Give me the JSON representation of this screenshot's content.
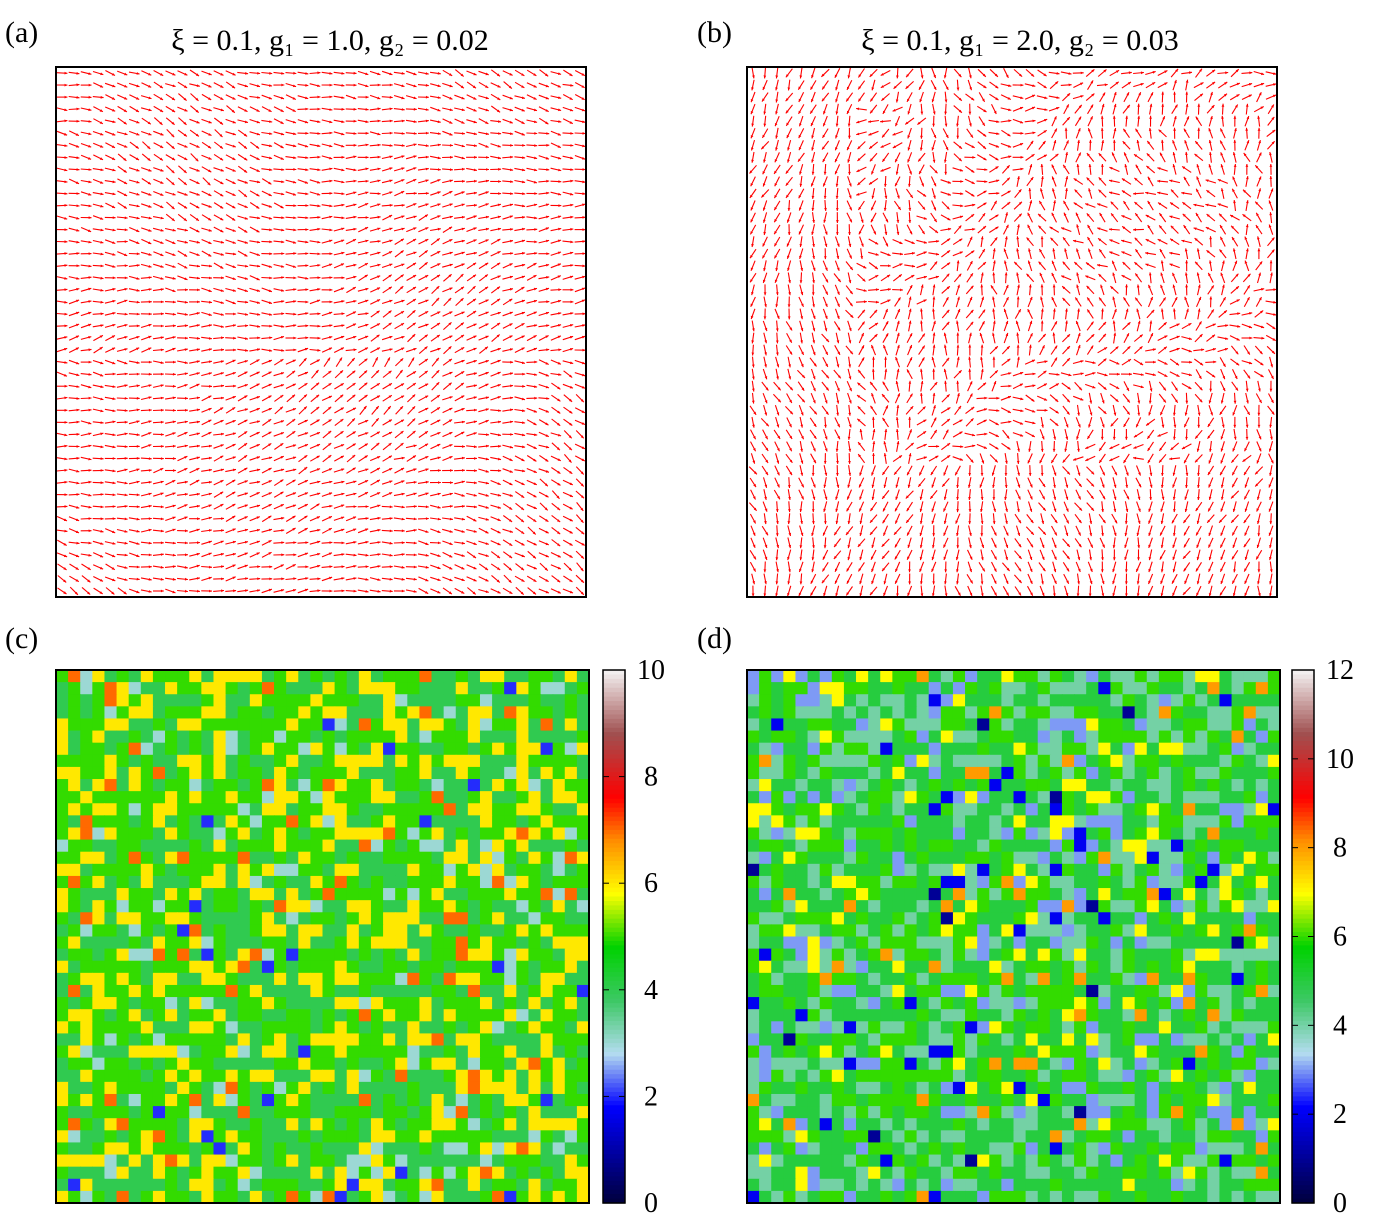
{
  "panels": [
    {
      "id": "a",
      "label": "(a)",
      "type": "vector-field",
      "title": "ξ = 0.1,  g₁ = 1.0,  g₂ = 0.02",
      "grid": 44,
      "arrow_color": "#ff0000",
      "seed": 11,
      "style": "aligned"
    },
    {
      "id": "b",
      "label": "(b)",
      "type": "vector-field",
      "title": "ξ = 0.1,  g₁ = 2.0,  g₂ = 0.03",
      "grid": 44,
      "arrow_color": "#ff0000",
      "seed": 23,
      "style": "vortex"
    }
  ],
  "chart_data": [
    {
      "type": "heatmap",
      "panel": "(c)",
      "grid": 44,
      "colorbar": {
        "min": 0,
        "max": 10,
        "ticks": [
          0,
          2,
          4,
          6,
          8,
          10
        ]
      },
      "value_distribution": [
        [
          2,
          0.01
        ],
        [
          3,
          0.06
        ],
        [
          4,
          0.3
        ],
        [
          5,
          0.36
        ],
        [
          6,
          0.24
        ],
        [
          7,
          0.035
        ],
        [
          8,
          0.004
        ],
        [
          10,
          0.001
        ]
      ],
      "seed": 37
    },
    {
      "type": "heatmap",
      "panel": "(d)",
      "grid": 44,
      "colorbar": {
        "min": 0,
        "max": 12,
        "ticks": [
          0,
          2,
          4,
          6,
          8,
          10,
          12
        ]
      },
      "value_distribution": [
        [
          1,
          0.005
        ],
        [
          2,
          0.02
        ],
        [
          3,
          0.08
        ],
        [
          4,
          0.22
        ],
        [
          5,
          0.34
        ],
        [
          6,
          0.24
        ],
        [
          7,
          0.07
        ],
        [
          8,
          0.025
        ]
      ],
      "seed": 53
    }
  ],
  "colors": {
    "palette": [
      "#00003c",
      "#0000ff",
      "#b4dcf0",
      "#3cc864",
      "#00d200",
      "#ffff00",
      "#ff8c00",
      "#ff0000",
      "#a05050",
      "#f5f5f5"
    ],
    "palette_positions": [
      0.0,
      0.18,
      0.28,
      0.38,
      0.48,
      0.58,
      0.68,
      0.76,
      0.88,
      1.0
    ],
    "frame": "#000000",
    "arrow": "#ff0000"
  }
}
